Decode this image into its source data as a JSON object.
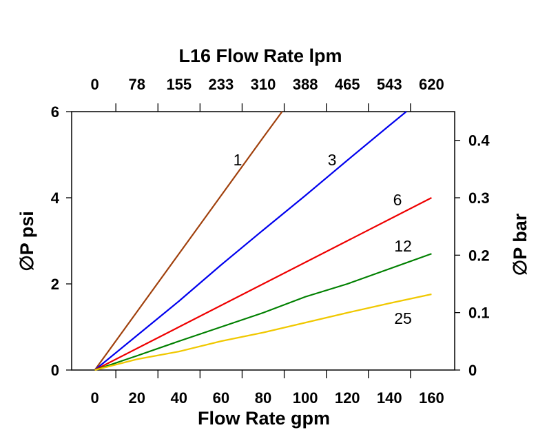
{
  "chart_data": {
    "type": "line",
    "title": "L16 Flow Rate lpm",
    "xlabel": "Flow Rate gpm",
    "ylabel": "∅P psi",
    "y2label": "∅P bar",
    "xlim": [
      -11,
      171
    ],
    "ylim": [
      0,
      6
    ],
    "y2lim": [
      0,
      0.45
    ],
    "x_ticks": [
      0,
      20,
      40,
      60,
      80,
      100,
      120,
      140,
      160
    ],
    "x_top_ticks": [
      "0",
      "78",
      "155",
      "233",
      "310",
      "388",
      "465",
      "543",
      "620"
    ],
    "y_ticks": [
      0,
      2,
      4,
      6
    ],
    "y2_ticks": [
      "0",
      "0.1",
      "0.2",
      "0.3",
      "0.4"
    ],
    "grid": false,
    "series": [
      {
        "name": "1",
        "color": "#a0400c",
        "x": [
          0,
          20,
          40,
          60,
          80,
          89
        ],
        "y": [
          0,
          1.35,
          2.7,
          4.05,
          5.4,
          6
        ]
      },
      {
        "name": "3",
        "color": "#0000ee",
        "x": [
          0,
          20,
          40,
          60,
          80,
          100,
          120,
          140,
          148
        ],
        "y": [
          0,
          0.8,
          1.6,
          2.44,
          3.25,
          4.05,
          4.87,
          5.68,
          6
        ]
      },
      {
        "name": "6",
        "color": "#ee0000",
        "x": [
          0,
          20,
          40,
          60,
          80,
          100,
          120,
          140,
          160
        ],
        "y": [
          0,
          0.5,
          1.0,
          1.5,
          2.0,
          2.5,
          3.0,
          3.5,
          4.0
        ]
      },
      {
        "name": "12",
        "color": "#008000",
        "x": [
          0,
          20,
          40,
          60,
          80,
          100,
          120,
          140,
          160
        ],
        "y": [
          0,
          0.33,
          0.67,
          1.0,
          1.33,
          1.7,
          2.0,
          2.35,
          2.7
        ]
      },
      {
        "name": "25",
        "color": "#f0c800",
        "x": [
          0,
          20,
          40,
          60,
          80,
          100,
          120,
          140,
          160
        ],
        "y": [
          0,
          0.25,
          0.43,
          0.67,
          0.87,
          1.1,
          1.33,
          1.55,
          1.76
        ]
      }
    ]
  }
}
